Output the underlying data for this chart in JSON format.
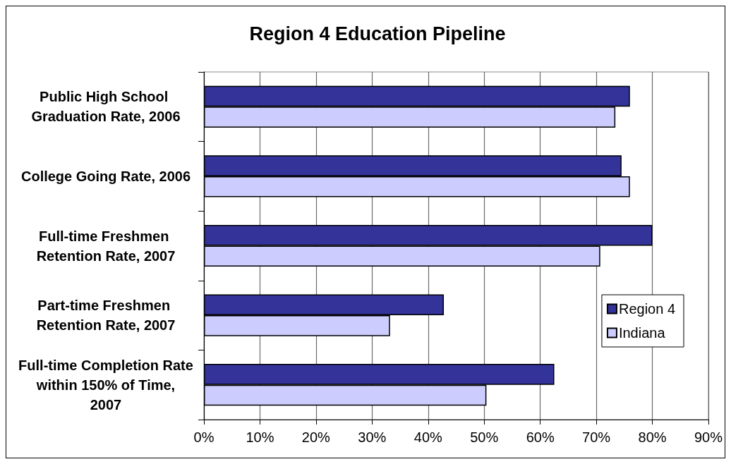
{
  "chart_data": {
    "type": "bar",
    "orientation": "horizontal",
    "title": "Region 4 Education Pipeline",
    "categories": [
      "Public High School Graduation Rate, 2006",
      "College Going Rate, 2006",
      "Full-time Freshmen Retention Rate, 2007",
      "Part-time Freshmen Retention Rate, 2007",
      "Full-time Completion Rate within 150% of Time, 2007"
    ],
    "series": [
      {
        "name": "Region 4",
        "color": "#333399",
        "values": [
          76,
          74.5,
          80,
          42.8,
          62.5
        ]
      },
      {
        "name": "Indiana",
        "color": "#ccccff",
        "values": [
          73.4,
          76,
          70.7,
          33.2,
          50.4
        ]
      }
    ],
    "xlim": [
      0,
      90
    ],
    "xticks": [
      {
        "value": 0,
        "label": "0%"
      },
      {
        "value": 10,
        "label": "10%"
      },
      {
        "value": 20,
        "label": "20%"
      },
      {
        "value": 30,
        "label": "30%"
      },
      {
        "value": 40,
        "label": "40%"
      },
      {
        "value": 50,
        "label": "50%"
      },
      {
        "value": 60,
        "label": "60%"
      },
      {
        "value": 70,
        "label": "70%"
      },
      {
        "value": 80,
        "label": "80%"
      },
      {
        "value": 90,
        "label": "90%"
      }
    ],
    "grid": "x",
    "legend": "right"
  }
}
